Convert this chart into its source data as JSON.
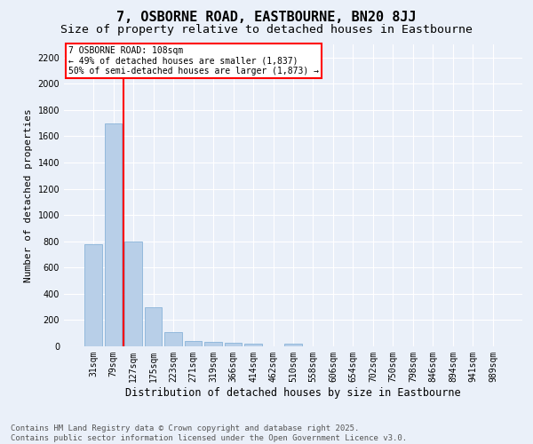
{
  "title": "7, OSBORNE ROAD, EASTBOURNE, BN20 8JJ",
  "subtitle": "Size of property relative to detached houses in Eastbourne",
  "xlabel": "Distribution of detached houses by size in Eastbourne",
  "ylabel": "Number of detached properties",
  "categories": [
    "31sqm",
    "79sqm",
    "127sqm",
    "175sqm",
    "223sqm",
    "271sqm",
    "319sqm",
    "366sqm",
    "414sqm",
    "462sqm",
    "510sqm",
    "558sqm",
    "606sqm",
    "654sqm",
    "702sqm",
    "750sqm",
    "798sqm",
    "846sqm",
    "894sqm",
    "941sqm",
    "989sqm"
  ],
  "values": [
    775,
    1700,
    800,
    300,
    110,
    40,
    35,
    30,
    20,
    0,
    20,
    0,
    0,
    0,
    0,
    0,
    0,
    0,
    0,
    0,
    0
  ],
  "bar_color": "#b8cfe8",
  "bar_edgecolor": "#7aaad4",
  "vline_color": "red",
  "vline_pos": 1.5,
  "annotation_text": "7 OSBORNE ROAD: 108sqm\n← 49% of detached houses are smaller (1,837)\n50% of semi-detached houses are larger (1,873) →",
  "annotation_box_color": "red",
  "ylim": [
    0,
    2300
  ],
  "yticks": [
    0,
    200,
    400,
    600,
    800,
    1000,
    1200,
    1400,
    1600,
    1800,
    2000,
    2200
  ],
  "bg_color": "#eaf0f9",
  "grid_color": "#ffffff",
  "footer": "Contains HM Land Registry data © Crown copyright and database right 2025.\nContains public sector information licensed under the Open Government Licence v3.0.",
  "title_fontsize": 11,
  "subtitle_fontsize": 9.5,
  "xlabel_fontsize": 8.5,
  "ylabel_fontsize": 8,
  "tick_fontsize": 7,
  "footer_fontsize": 6.5,
  "annotation_fontsize": 7
}
